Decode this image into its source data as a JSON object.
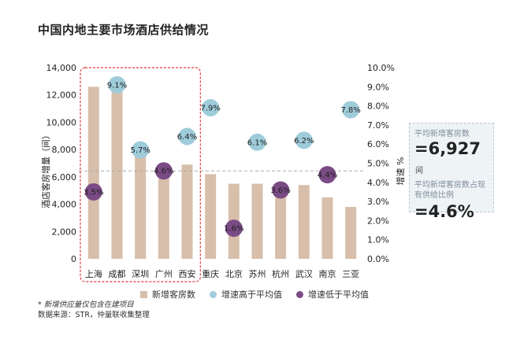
{
  "title": "中国内地主要市场酒店供给情况",
  "chart_data": {
    "type": "bar",
    "categories": [
      "上海",
      "成都",
      "深圳",
      "广州",
      "西安",
      "重庆",
      "北京",
      "苏州",
      "杭州",
      "武汉",
      "南京",
      "三亚"
    ],
    "series": [
      {
        "name": "新增客房数",
        "axis": "left",
        "values": [
          12600,
          12200,
          7500,
          6500,
          6900,
          6200,
          5500,
          5500,
          5400,
          5400,
          4500,
          3800
        ]
      },
      {
        "name": "增速",
        "axis": "right",
        "values": [
          3.5,
          9.1,
          5.7,
          4.6,
          6.4,
          7.9,
          1.6,
          6.1,
          3.6,
          6.2,
          4.4,
          7.8
        ]
      }
    ],
    "bubble_labels": [
      "3.5%",
      "9.1%",
      "5.7%",
      "4.6%",
      "6.4%",
      "7.9%",
      "1.6%",
      "6.1%",
      "3.6%",
      "6.2%",
      "4.4%",
      "7.8%"
    ],
    "average_growth": 4.6,
    "ylabel": "酒店客房增量（间）",
    "y2label": "增速 %",
    "ylim": [
      0,
      14000
    ],
    "y2lim": [
      0,
      10
    ],
    "y_ticks": [
      "0",
      "2,000",
      "4,000",
      "6,000",
      "8,000",
      "10,000",
      "12,000",
      "14,000"
    ],
    "y2_ticks": [
      "0.0%",
      "1.0%",
      "2.0%",
      "3.0%",
      "4.0%",
      "5.0%",
      "6.0%",
      "7.0%",
      "8.0%",
      "9.0%",
      "10.0%"
    ],
    "highlight_categories": [
      "上海",
      "成都",
      "深圳",
      "广州",
      "西安"
    ],
    "colors": {
      "bar": "#d7bfab",
      "above": "#9fccda",
      "below": "#7b4b86",
      "avg_line": "#aaaaaa",
      "highlight_box": "#e23b3b"
    }
  },
  "legend": {
    "bars": "新增客房数",
    "above": "增速高于平均值",
    "below": "增速低于平均值"
  },
  "sidebox": {
    "label1": "平均新增客房数",
    "value1": "=6,927",
    "unit1": "间",
    "label2": "平均新增客房数占现有供给比例",
    "value2": "=4.6%"
  },
  "notes": {
    "line1": "* 新增供应量仅包含在建项目",
    "line2": "数据来源：STR，仲量联收集整理"
  }
}
